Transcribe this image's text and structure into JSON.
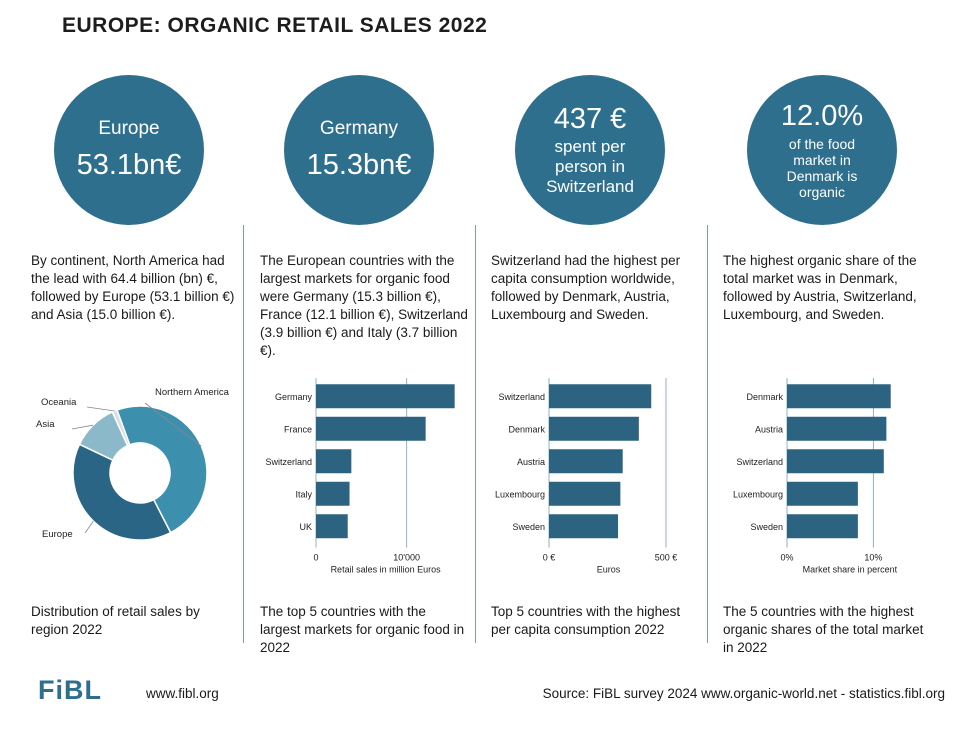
{
  "title": "EUROPE: ORGANIC RETAIL SALES 2022",
  "colors": {
    "accent": "#2e6f8e",
    "bar": "#2c6381",
    "grid": "#8fb3c7"
  },
  "panels": [
    {
      "circle": {
        "line1": "Europe",
        "line2": "53.1bn€"
      },
      "description": "By continent, North America had the lead with 64.4 billion (bn) €, followed by Europe (53.1 billion €) and Asia (15.0 billion €).",
      "caption": "Distribution of retail sales by region 2022"
    },
    {
      "circle": {
        "line1": "Germany",
        "line2": "15.3bn€"
      },
      "description": "The European countries with the largest markets for organic food were Germany (15.3 billion €), France (12.1 billion €), Switzerland (3.9 billion €) and Italy (3.7 billion €).",
      "caption": "The top 5 countries with the largest markets for organic food in 2022"
    },
    {
      "circle": {
        "line1": "437 €",
        "line2": "spent per person in Switzerland"
      },
      "description": "Switzerland had the highest per capita consumption worldwide, followed by Denmark, Austria, Luxembourg and Sweden.",
      "caption": "Top 5 countries with the highest per capita consumption 2022"
    },
    {
      "circle": {
        "line1": "12.0%",
        "line2": "of the food market in Denmark is organic"
      },
      "description": "The highest organic share of the total market was in Denmark, followed by Austria, Switzerland, Luxembourg, and Sweden.",
      "caption": "The 5 countries with the highest organic shares of the total market in 2022"
    }
  ],
  "chart_data": [
    {
      "type": "pie",
      "donut": true,
      "labels": [
        "Northern America",
        "Europe",
        "Asia",
        "Oceania"
      ],
      "values": [
        64.4,
        53.1,
        15.0,
        1.6
      ],
      "colors": [
        "#3d8fae",
        "#2b6585",
        "#8cb9c9",
        "#d5dfe4"
      ]
    },
    {
      "type": "bar",
      "orientation": "horizontal",
      "categories": [
        "Germany",
        "France",
        "Switzerland",
        "Italy",
        "UK"
      ],
      "values": [
        15300,
        12100,
        3900,
        3700,
        3500
      ],
      "xlim": [
        0,
        16000
      ],
      "ticks": [
        0,
        10000
      ],
      "tick_labels": [
        "0",
        "10'000"
      ],
      "xlabel": "Retail sales in million Euros"
    },
    {
      "type": "bar",
      "orientation": "horizontal",
      "categories": [
        "Switzerland",
        "Denmark",
        "Austria",
        "Luxembourg",
        "Sweden"
      ],
      "values": [
        437,
        384,
        315,
        305,
        295
      ],
      "xlim": [
        0,
        530
      ],
      "ticks": [
        0,
        500
      ],
      "tick_labels": [
        "0 €",
        "500 €"
      ],
      "xlabel": "Euros"
    },
    {
      "type": "bar",
      "orientation": "horizontal",
      "categories": [
        "Denmark",
        "Austria",
        "Switzerland",
        "Luxembourg",
        "Sweden"
      ],
      "values": [
        12.0,
        11.5,
        11.2,
        8.2,
        8.2
      ],
      "xlim": [
        0,
        14
      ],
      "ticks": [
        0,
        10
      ],
      "tick_labels": [
        "0%",
        "10%"
      ],
      "xlabel": "Market share in percent"
    }
  ],
  "footer": {
    "logo": "FiBL",
    "website": "www.fibl.org",
    "source": "Source: FiBL survey 2024 www.organic-world.net - statistics.fibl.org"
  }
}
